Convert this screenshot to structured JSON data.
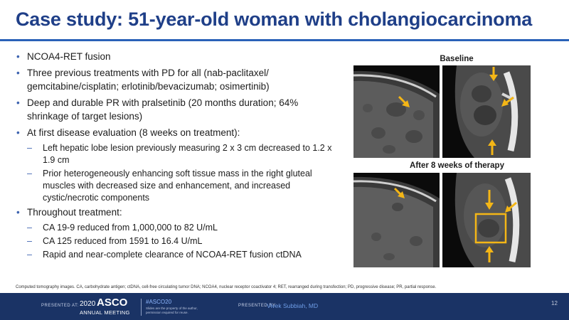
{
  "slide": {
    "title": "Case study: 51-year-old woman with cholangiocarcinoma",
    "bullets": [
      "NCOA4-RET fusion",
      "Three previous treatments with PD for all (nab-paclitaxel/ gemcitabine/cisplatin; erlotinib/bevacizumab; osimertinib)",
      "Deep and durable PR with pralsetinib (20 months duration; 64% shrinkage of target lesions)",
      "At first disease evaluation (8 weeks on treatment):",
      "Throughout treatment:"
    ],
    "sub_bullets_eval": [
      "Left hepatic lobe lesion previously measuring 2 x 3 cm decreased to 1.2 x 1.9 cm",
      "Prior heterogeneously enhancing soft tissue mass in the right gluteal muscles with decreased size and enhancement, and increased cystic/necrotic components"
    ],
    "sub_bullets_treatment": [
      "CA 19-9 reduced from 1,000,000 to 82 U/mL",
      "CA 125 reduced from 1591 to 16.4 U/mL",
      "Rapid and near-complete clearance of NCOA4-RET fusion ctDNA"
    ],
    "image_labels": {
      "baseline": "Baseline",
      "after": "After 8 weeks of therapy"
    },
    "footnote": "Computed tomography images. CA, carbohydrate antigen; ctDNA, cell-free circulating tumor DNA; NCOA4, nuclear receptor coactivator 4; RET, rearranged during transfection; PD, progressive disease; PR, partial response.",
    "page_number": "12"
  },
  "footer": {
    "presented_at": "PRESENTED AT:",
    "year": "2020",
    "asco": "ASCO",
    "meeting": "ANNUAL MEETING",
    "hashtag": "#ASCO20",
    "note": "Slides are the property of the author, permission required for reuse.",
    "presented_by": "PRESENTED BY:",
    "presenter": "Vivek Subbiah, MD"
  },
  "colors": {
    "title": "#1f3f88",
    "rule": "#2a62b8",
    "footer_bg": "#1a3365",
    "arrow": "#f4b616"
  }
}
